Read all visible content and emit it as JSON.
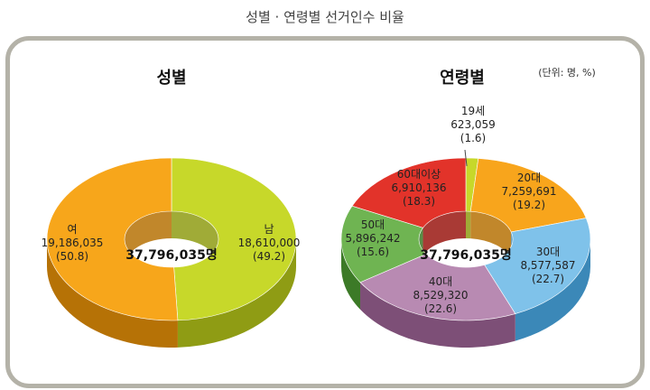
{
  "header": {
    "title": "성별 · 연령별 선거인수 비율"
  },
  "unit_note": "(단위: 명, %)",
  "chart_data": [
    {
      "type": "pie",
      "donut": true,
      "title": "성별",
      "center_label": "37,796,035명",
      "slices": [
        {
          "name": "남",
          "value": "18,610,000",
          "percent": "(49.2)",
          "share": 49.2,
          "color": "#c7d82a",
          "side": "#8f9c14",
          "top": "#d6e35a"
        },
        {
          "name": "여",
          "value": "19,186,035",
          "percent": "(50.8)",
          "share": 50.8,
          "color": "#f7a61b",
          "side": "#b67206",
          "top": "#fbbf52"
        }
      ]
    },
    {
      "type": "pie",
      "donut": true,
      "title": "연령별",
      "center_label": "37,796,035명",
      "slices": [
        {
          "name": "19세",
          "value": "623,059",
          "percent": "(1.6)",
          "share": 1.6,
          "color": "#c7d82a",
          "side": "#8f9c14",
          "top": "#d6e35a"
        },
        {
          "name": "20대",
          "value": "7,259,691",
          "percent": "(19.2)",
          "share": 19.2,
          "color": "#f8a51c",
          "side": "#b67206",
          "top": "#fbbd4e"
        },
        {
          "name": "30대",
          "value": "8,577,587",
          "percent": "(22.7)",
          "share": 22.7,
          "color": "#7fc2ea",
          "side": "#3b88b8",
          "top": "#a3d3f0"
        },
        {
          "name": "40대",
          "value": "8,529,320",
          "percent": "(22.6)",
          "share": 22.6,
          "color": "#b88ab2",
          "side": "#7d4f77",
          "top": "#cba6c6"
        },
        {
          "name": "50대",
          "value": "5,896,242",
          "percent": "(15.6)",
          "share": 15.6,
          "color": "#6fb452",
          "side": "#3c7a27",
          "top": "#8fc877"
        },
        {
          "name": "60대이상",
          "value": "6,910,136",
          "percent": "(18.3)",
          "share": 18.3,
          "color": "#e2332a",
          "side": "#9a1812",
          "top": "#ec5f57"
        }
      ]
    }
  ]
}
